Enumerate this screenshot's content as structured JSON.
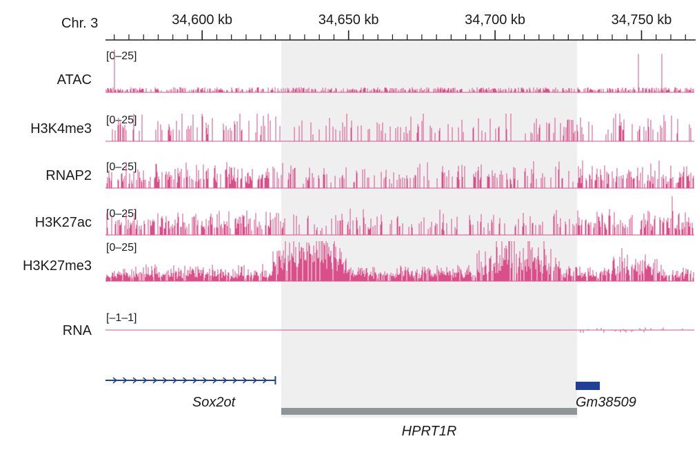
{
  "chromosome_label": "Chr. 3",
  "axis": {
    "ticks": [
      "34,600 kb",
      "34,650 kb",
      "34,700 kb",
      "34,750 kb"
    ],
    "tick_values_kb": [
      34600,
      34650,
      34700,
      34750
    ],
    "start_kb": 34567,
    "end_kb": 34768
  },
  "highlight_region_kb": [
    34627,
    34728
  ],
  "tracks": [
    {
      "name": "ATAC",
      "range": "[0–25]",
      "color": "#d94f8a",
      "level": "low",
      "seed": 11
    },
    {
      "name": "H3K4me3",
      "range": "[0–25]",
      "color": "#d94f8a",
      "level": "sparse",
      "seed": 23
    },
    {
      "name": "RNAP2",
      "range": "[0–25]",
      "color": "#d94f8a",
      "level": "medium",
      "seed": 37
    },
    {
      "name": "H3K27ac",
      "range": "[0–25]",
      "color": "#d94f8a",
      "level": "medium",
      "seed": 41
    },
    {
      "name": "H3K27me3",
      "range": "[0–25]",
      "color": "#d94f8a",
      "level": "high",
      "seed": 53
    },
    {
      "name": "RNA",
      "range": "[–1–1]",
      "color": "#d94f8a",
      "level": "flat",
      "seed": 67
    }
  ],
  "genes": [
    {
      "name": "Sox2ot",
      "color": "#1f3f99",
      "start_kb": 34567,
      "end_kb": 34625,
      "style": "arrows"
    },
    {
      "name": "Gm38509",
      "color": "#1f3f99",
      "start_kb": 34728,
      "end_kb": 34736,
      "style": "block"
    }
  ],
  "region_bar": {
    "name": "HPRT1R",
    "color": "#8f9497",
    "start_kb": 34627,
    "end_kb": 34728
  },
  "colors": {
    "highlight": "#efefef",
    "signal": "#d94f8a",
    "gene": "#1f3f99",
    "region": "#8f9497"
  }
}
